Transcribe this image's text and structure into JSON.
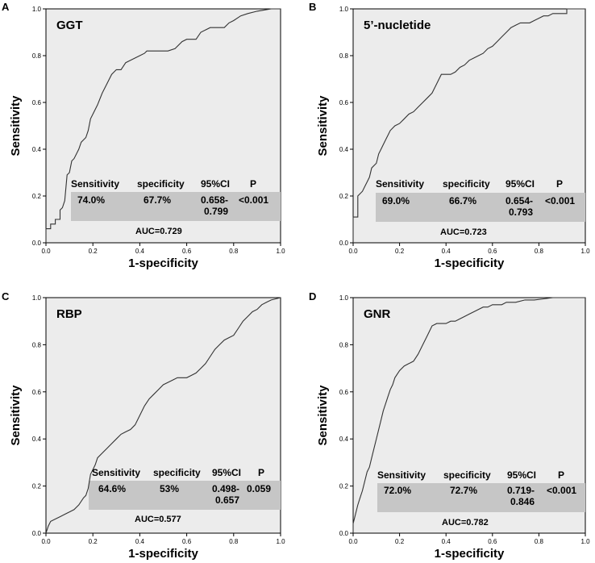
{
  "chart_data": [
    {
      "type": "line",
      "panel": "A",
      "marker": "GGT",
      "xlabel": "1-specificity",
      "ylabel": "Sensitivity",
      "xlim": [
        0,
        1
      ],
      "ylim": [
        0,
        1
      ],
      "xticks": [
        "0.0",
        "0.2",
        "0.4",
        "0.6",
        "0.8",
        "1.0"
      ],
      "yticks": [
        "0.0",
        "0.2",
        "0.4",
        "0.6",
        "0.8",
        "1.0"
      ],
      "table_headers": [
        "Sensitivity",
        "specificity",
        "95%CI",
        "P"
      ],
      "table_values": [
        "74.0%",
        "67.7%",
        "0.658-",
        "0.799",
        "<0.001"
      ],
      "auc": "AUC=0.729",
      "roc": {
        "x": [
          0,
          0,
          0.02,
          0.02,
          0.04,
          0.04,
          0.06,
          0.06,
          0.07,
          0.08,
          0.09,
          0.1,
          0.11,
          0.12,
          0.14,
          0.15,
          0.17,
          0.18,
          0.19,
          0.2,
          0.22,
          0.22,
          0.24,
          0.26,
          0.28,
          0.3,
          0.31,
          0.32,
          0.34,
          0.36,
          0.38,
          0.4,
          0.42,
          0.43,
          0.45,
          0.48,
          0.52,
          0.55,
          0.58,
          0.6,
          0.62,
          0.64,
          0.66,
          0.68,
          0.7,
          0.72,
          0.74,
          0.76,
          0.78,
          0.8,
          0.83,
          0.86,
          0.9,
          0.93,
          0.96,
          1.0
        ],
        "y": [
          0,
          0.06,
          0.06,
          0.08,
          0.08,
          0.1,
          0.1,
          0.14,
          0.15,
          0.18,
          0.29,
          0.3,
          0.35,
          0.36,
          0.4,
          0.43,
          0.45,
          0.48,
          0.53,
          0.55,
          0.59,
          0.59,
          0.64,
          0.68,
          0.72,
          0.74,
          0.74,
          0.74,
          0.77,
          0.78,
          0.79,
          0.8,
          0.81,
          0.82,
          0.82,
          0.82,
          0.82,
          0.83,
          0.86,
          0.87,
          0.87,
          0.87,
          0.9,
          0.91,
          0.92,
          0.92,
          0.92,
          0.92,
          0.94,
          0.95,
          0.97,
          0.98,
          0.99,
          0.995,
          1.0,
          1.0
        ]
      }
    },
    {
      "type": "line",
      "panel": "B",
      "marker": "5’-nucletide",
      "xlabel": "1-specificity",
      "ylabel": "Sensitivity",
      "xlim": [
        0,
        1
      ],
      "ylim": [
        0,
        1
      ],
      "xticks": [
        "0.0",
        "0.2",
        "0.4",
        "0.6",
        "0.8",
        "1.0"
      ],
      "yticks": [
        "0.0",
        "0.2",
        "0.4",
        "0.6",
        "0.8",
        "1.0"
      ],
      "table_headers": [
        "Sensitivity",
        "specificity",
        "95%CI",
        "P"
      ],
      "table_values": [
        "69.0%",
        "66.7%",
        "0.654-",
        "0.793",
        "<0.001"
      ],
      "auc": "AUC=0.723",
      "roc": {
        "x": [
          0,
          0,
          0.02,
          0.02,
          0.04,
          0.05,
          0.06,
          0.07,
          0.08,
          0.1,
          0.11,
          0.12,
          0.13,
          0.14,
          0.15,
          0.16,
          0.18,
          0.2,
          0.22,
          0.24,
          0.26,
          0.28,
          0.3,
          0.32,
          0.34,
          0.36,
          0.38,
          0.4,
          0.42,
          0.44,
          0.46,
          0.48,
          0.5,
          0.52,
          0.54,
          0.56,
          0.58,
          0.6,
          0.62,
          0.64,
          0.66,
          0.68,
          0.7,
          0.72,
          0.74,
          0.76,
          0.78,
          0.8,
          0.82,
          0.84,
          0.86,
          0.88,
          0.9,
          0.92,
          0.92,
          1.0
        ],
        "y": [
          0,
          0.11,
          0.11,
          0.2,
          0.22,
          0.24,
          0.26,
          0.28,
          0.32,
          0.34,
          0.38,
          0.4,
          0.42,
          0.44,
          0.46,
          0.48,
          0.5,
          0.51,
          0.53,
          0.55,
          0.56,
          0.58,
          0.6,
          0.62,
          0.64,
          0.68,
          0.72,
          0.72,
          0.72,
          0.73,
          0.75,
          0.76,
          0.78,
          0.79,
          0.8,
          0.81,
          0.83,
          0.84,
          0.86,
          0.88,
          0.9,
          0.92,
          0.93,
          0.94,
          0.94,
          0.94,
          0.95,
          0.96,
          0.97,
          0.97,
          0.98,
          0.98,
          0.98,
          0.98,
          1.0,
          1.0
        ]
      }
    },
    {
      "type": "line",
      "panel": "C",
      "marker": "RBP",
      "xlabel": "1-specificity",
      "ylabel": "Sensitivity",
      "xlim": [
        0,
        1
      ],
      "ylim": [
        0,
        1
      ],
      "xticks": [
        "0.0",
        "0.2",
        "0.4",
        "0.6",
        "0.8",
        "1.0"
      ],
      "yticks": [
        "0.0",
        "0.2",
        "0.4",
        "0.6",
        "0.8",
        "1.0"
      ],
      "table_headers": [
        "Sensitivity",
        "specificity",
        "95%CI",
        "P"
      ],
      "table_values": [
        "64.6%",
        "53%",
        "0.498-",
        "0.657",
        "0.059"
      ],
      "auc": "AUC=0.577",
      "roc": {
        "x": [
          0,
          0.01,
          0.02,
          0.04,
          0.06,
          0.08,
          0.1,
          0.12,
          0.14,
          0.16,
          0.17,
          0.18,
          0.19,
          0.2,
          0.21,
          0.22,
          0.24,
          0.26,
          0.28,
          0.3,
          0.32,
          0.34,
          0.36,
          0.38,
          0.4,
          0.42,
          0.44,
          0.46,
          0.48,
          0.5,
          0.52,
          0.54,
          0.56,
          0.58,
          0.6,
          0.62,
          0.64,
          0.66,
          0.68,
          0.7,
          0.72,
          0.74,
          0.76,
          0.78,
          0.8,
          0.82,
          0.84,
          0.86,
          0.88,
          0.9,
          0.92,
          0.94,
          0.96,
          1.0
        ],
        "y": [
          0,
          0.03,
          0.05,
          0.06,
          0.07,
          0.08,
          0.09,
          0.1,
          0.12,
          0.15,
          0.16,
          0.19,
          0.25,
          0.27,
          0.29,
          0.32,
          0.34,
          0.36,
          0.38,
          0.4,
          0.42,
          0.43,
          0.44,
          0.46,
          0.5,
          0.54,
          0.57,
          0.59,
          0.61,
          0.63,
          0.64,
          0.65,
          0.66,
          0.66,
          0.66,
          0.67,
          0.68,
          0.7,
          0.72,
          0.75,
          0.78,
          0.8,
          0.82,
          0.83,
          0.84,
          0.87,
          0.9,
          0.92,
          0.94,
          0.95,
          0.97,
          0.98,
          0.99,
          1.0
        ]
      }
    },
    {
      "type": "line",
      "panel": "D",
      "marker": "GNR",
      "xlabel": "1-specificity",
      "ylabel": "Sensitivity",
      "xlim": [
        0,
        1
      ],
      "ylim": [
        0,
        1
      ],
      "xticks": [
        "0.0",
        "0.2",
        "0.4",
        "0.6",
        "0.8",
        "1.0"
      ],
      "yticks": [
        "0.0",
        "0.2",
        "0.4",
        "0.6",
        "0.8",
        "1.0"
      ],
      "table_headers": [
        "Sensitivity",
        "specificity",
        "95%CI",
        "P"
      ],
      "table_values": [
        "72.0%",
        "72.7%",
        "0.719-",
        "0.846",
        "<0.001"
      ],
      "auc": "AUC=0.782",
      "roc": {
        "x": [
          0,
          0,
          0.01,
          0.02,
          0.03,
          0.04,
          0.05,
          0.06,
          0.07,
          0.08,
          0.09,
          0.1,
          0.11,
          0.12,
          0.13,
          0.14,
          0.15,
          0.16,
          0.17,
          0.18,
          0.2,
          0.22,
          0.24,
          0.26,
          0.28,
          0.3,
          0.32,
          0.34,
          0.36,
          0.38,
          0.4,
          0.42,
          0.44,
          0.46,
          0.48,
          0.5,
          0.52,
          0.54,
          0.56,
          0.58,
          0.6,
          0.62,
          0.64,
          0.66,
          0.7,
          0.74,
          0.78,
          0.82,
          0.86,
          0.9,
          0.94,
          1.0
        ],
        "y": [
          0,
          0.04,
          0.08,
          0.12,
          0.15,
          0.18,
          0.22,
          0.26,
          0.28,
          0.32,
          0.36,
          0.4,
          0.44,
          0.48,
          0.52,
          0.55,
          0.58,
          0.61,
          0.63,
          0.66,
          0.69,
          0.71,
          0.72,
          0.73,
          0.76,
          0.8,
          0.84,
          0.88,
          0.89,
          0.89,
          0.89,
          0.9,
          0.9,
          0.91,
          0.92,
          0.93,
          0.94,
          0.95,
          0.96,
          0.96,
          0.97,
          0.97,
          0.97,
          0.98,
          0.98,
          0.99,
          0.99,
          0.995,
          1.0,
          1.0,
          1.0,
          1.0
        ]
      }
    }
  ]
}
